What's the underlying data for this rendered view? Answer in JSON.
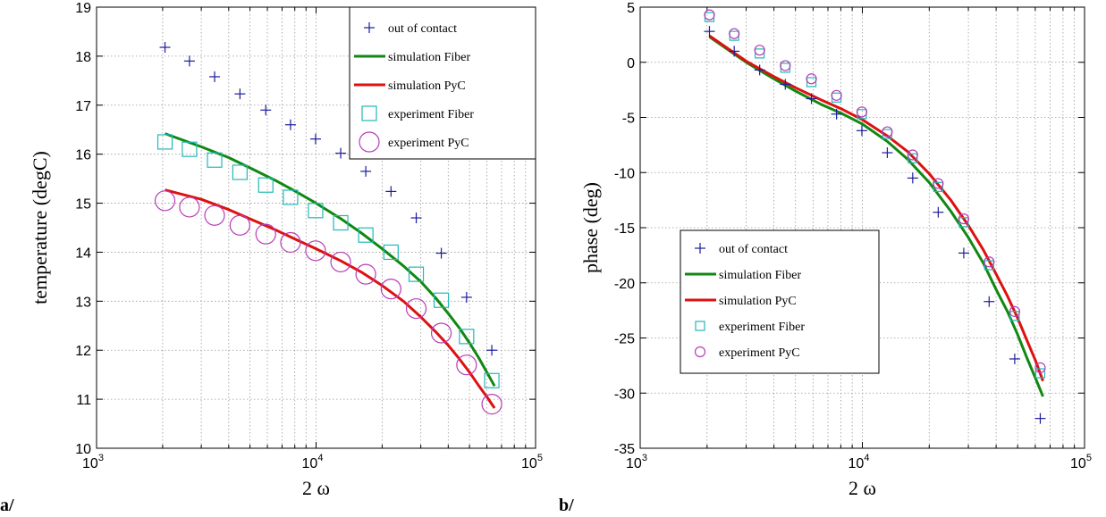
{
  "panel_labels": [
    "a/",
    "b/"
  ],
  "chart_data": [
    {
      "type": "line",
      "xscale": "log",
      "xlim": [
        1000,
        100000
      ],
      "ylim": [
        10,
        19
      ],
      "xlabel": "2 ω",
      "ylabel": "temperature (degC)",
      "grid": true,
      "legend_position": "top-right",
      "x_tick_labels": [
        "10",
        "10",
        "10"
      ],
      "x_tick_exponents": [
        "3",
        "4",
        "5"
      ],
      "y_ticks": [
        10,
        11,
        12,
        13,
        14,
        15,
        16,
        17,
        18,
        19
      ],
      "series": [
        {
          "name": "out of contact",
          "style": "marker-plus",
          "color": "#1c1c9c",
          "x": [
            2050,
            2650,
            3450,
            4500,
            5900,
            7650,
            9950,
            12950,
            16850,
            21950,
            28600,
            37200,
            48500,
            63200
          ],
          "y": [
            18.18,
            17.9,
            17.58,
            17.23,
            16.9,
            16.6,
            16.31,
            16.02,
            15.65,
            15.24,
            14.7,
            13.98,
            13.08,
            12.0
          ]
        },
        {
          "name": "simulation Fiber",
          "style": "line",
          "color": "#118811",
          "x": [
            2050,
            3000,
            4000,
            5000,
            6500,
            8000,
            10000,
            13000,
            16000,
            20000,
            25000,
            30000,
            35000,
            40000,
            45000,
            50000,
            55000,
            60000,
            65000
          ],
          "y": [
            16.42,
            16.15,
            15.93,
            15.72,
            15.47,
            15.25,
            15.0,
            14.68,
            14.4,
            14.07,
            13.72,
            13.4,
            13.07,
            12.75,
            12.45,
            12.15,
            11.85,
            11.55,
            11.27
          ]
        },
        {
          "name": "simulation PyC",
          "style": "line",
          "color": "#dd1111",
          "x": [
            2050,
            3000,
            4000,
            5000,
            6500,
            8000,
            10000,
            13000,
            16000,
            20000,
            25000,
            30000,
            35000,
            40000,
            45000,
            50000,
            55000,
            60000,
            65000
          ],
          "y": [
            15.27,
            15.08,
            14.87,
            14.68,
            14.46,
            14.27,
            14.07,
            13.82,
            13.6,
            13.32,
            13.0,
            12.68,
            12.38,
            12.1,
            11.82,
            11.55,
            11.28,
            11.05,
            10.82
          ]
        },
        {
          "name": "experiment Fiber",
          "style": "marker-square",
          "color": "#22b8b8",
          "x": [
            2050,
            2650,
            3450,
            4500,
            5900,
            7650,
            9950,
            12950,
            16850,
            21950,
            28600,
            37200,
            48500,
            63200
          ],
          "y": [
            16.25,
            16.1,
            15.88,
            15.63,
            15.37,
            15.12,
            14.85,
            14.6,
            14.35,
            14.0,
            13.55,
            13.02,
            12.28,
            11.38
          ]
        },
        {
          "name": "experiment PyC",
          "style": "marker-circle",
          "color": "#b83cb8",
          "x": [
            2050,
            2650,
            3450,
            4500,
            5900,
            7650,
            9950,
            12950,
            16850,
            21950,
            28600,
            37200,
            48500,
            63200
          ],
          "y": [
            15.05,
            14.92,
            14.75,
            14.55,
            14.37,
            14.2,
            14.03,
            13.8,
            13.55,
            13.25,
            12.85,
            12.35,
            11.7,
            10.9
          ]
        }
      ]
    },
    {
      "type": "line",
      "xscale": "log",
      "xlim": [
        1000,
        100000
      ],
      "ylim": [
        -35,
        5
      ],
      "xlabel": "2 ω",
      "ylabel": "phase (deg)",
      "grid": true,
      "legend_position": "bottom-left",
      "x_tick_labels": [
        "10",
        "10",
        "10"
      ],
      "x_tick_exponents": [
        "3",
        "4",
        "5"
      ],
      "y_ticks": [
        -35,
        -30,
        -25,
        -20,
        -15,
        -10,
        -5,
        0,
        5
      ],
      "series": [
        {
          "name": "out of contact",
          "style": "marker-plus",
          "color": "#1c1c9c",
          "x": [
            2050,
            2650,
            3450,
            4500,
            5900,
            7650,
            9950,
            12950,
            16850,
            21950,
            28600,
            37200,
            48500,
            63200
          ],
          "y": [
            2.8,
            1.0,
            -0.7,
            -2.0,
            -3.3,
            -4.7,
            -6.2,
            -8.2,
            -10.5,
            -13.6,
            -17.3,
            -21.7,
            -26.9,
            -32.3
          ]
        },
        {
          "name": "simulation Fiber",
          "style": "line",
          "color": "#118811",
          "x": [
            2050,
            3000,
            4000,
            5000,
            6500,
            8000,
            10000,
            13000,
            16000,
            20000,
            25000,
            30000,
            35000,
            40000,
            45000,
            50000,
            55000,
            60000,
            65000
          ],
          "y": [
            2.3,
            0.0,
            -1.5,
            -2.6,
            -3.8,
            -4.6,
            -5.6,
            -7.2,
            -8.8,
            -10.9,
            -13.5,
            -15.9,
            -18.2,
            -20.6,
            -22.6,
            -24.7,
            -26.8,
            -28.6,
            -30.3
          ]
        },
        {
          "name": "simulation PyC",
          "style": "line",
          "color": "#dd1111",
          "x": [
            2050,
            3000,
            4000,
            5000,
            6500,
            8000,
            10000,
            13000,
            16000,
            20000,
            25000,
            30000,
            35000,
            40000,
            45000,
            50000,
            55000,
            60000,
            65000
          ],
          "y": [
            2.4,
            0.1,
            -1.3,
            -2.3,
            -3.4,
            -4.2,
            -5.2,
            -6.7,
            -8.1,
            -10.1,
            -12.5,
            -14.8,
            -17.0,
            -19.2,
            -21.2,
            -23.2,
            -25.2,
            -27.0,
            -28.9
          ]
        },
        {
          "name": "experiment Fiber",
          "style": "marker-square",
          "color": "#22b8b8",
          "x": [
            2050,
            2650,
            3450,
            4500,
            5900,
            7650,
            9950,
            12950,
            16850,
            21950,
            28600,
            37200,
            48500,
            63200
          ],
          "y": [
            4.1,
            2.4,
            0.8,
            -0.5,
            -1.8,
            -3.2,
            -4.7,
            -6.5,
            -8.7,
            -11.3,
            -14.5,
            -18.4,
            -23.0,
            -28.2
          ]
        },
        {
          "name": "experiment PyC",
          "style": "marker-circle",
          "color": "#b83cb8",
          "x": [
            2050,
            2650,
            3450,
            4500,
            5900,
            7650,
            9950,
            12950,
            16850,
            21950,
            28600,
            37200,
            48500,
            63200
          ],
          "y": [
            4.3,
            2.6,
            1.1,
            -0.3,
            -1.5,
            -3.0,
            -4.5,
            -6.3,
            -8.4,
            -11.0,
            -14.2,
            -18.1,
            -22.6,
            -27.7
          ]
        }
      ]
    }
  ]
}
